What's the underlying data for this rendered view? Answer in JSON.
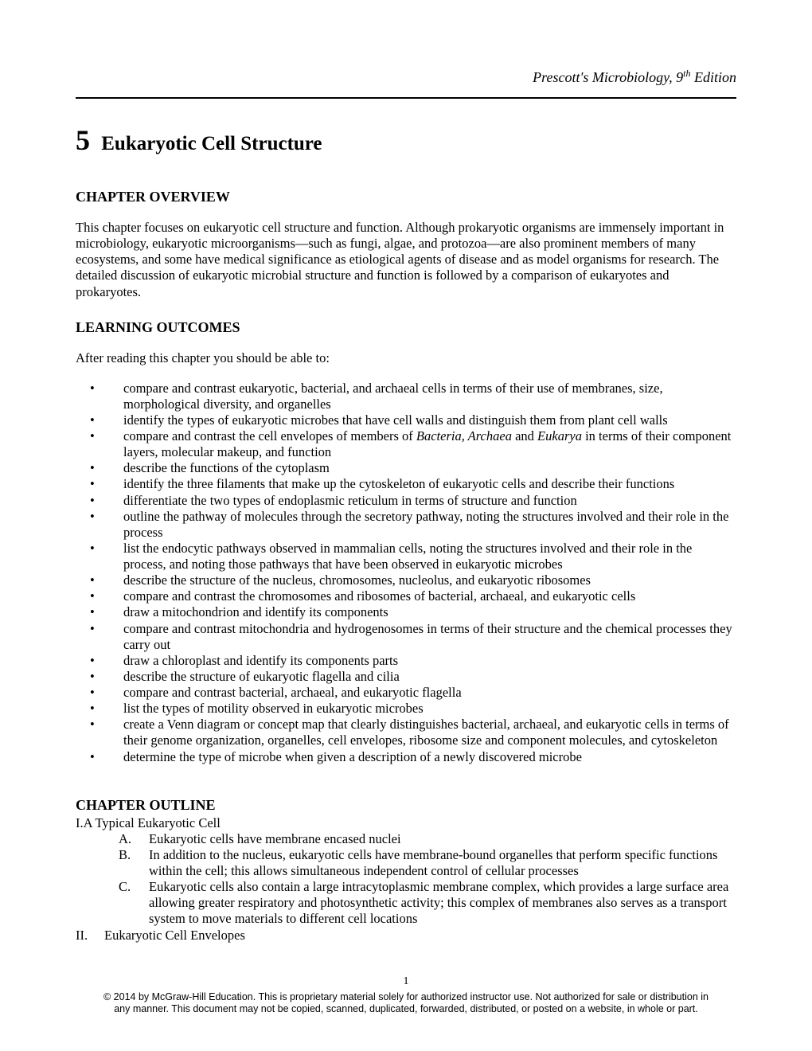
{
  "running_head": {
    "title_pre": "Prescott's Microbiology, 9",
    "title_sup": "th",
    "title_post": " Edition"
  },
  "chapter": {
    "number": "5",
    "title": "Eukaryotic Cell Structure"
  },
  "overview": {
    "heading": "CHAPTER OVERVIEW",
    "text": "This chapter focuses on eukaryotic cell structure and function. Although prokaryotic organisms are immensely important in microbiology, eukaryotic microorganisms—such as fungi, algae, and protozoa—are also prominent members of many ecosystems, and some have medical significance as etiological agents of disease and as model organisms for research.  The detailed discussion of eukaryotic microbial structure and function is followed by a comparison of eukaryotes and prokaryotes."
  },
  "learning_outcomes": {
    "heading": "LEARNING OUTCOMES",
    "intro": "After reading this chapter you should be able to:",
    "items": [
      "compare and contrast eukaryotic, bacterial, and archaeal cells in terms of their use of membranes, size, morphological diversity, and organelles",
      "identify the types of eukaryotic microbes that have cell walls and distinguish them from plant cell walls",
      "compare and contrast the cell envelopes of members of <em>Bacteria, Archaea</em> and <em>Eukarya</em> in terms of their component layers, molecular makeup, and function",
      "describe the functions of the cytoplasm",
      "identify the three filaments that make up the cytoskeleton of eukaryotic cells and describe their functions",
      "differentiate the two types of endoplasmic reticulum in terms of structure and function",
      "outline the pathway of molecules through the secretory pathway, noting the structures involved and their role in the process",
      "list the endocytic pathways observed in mammalian cells, noting the structures involved and their role in the process, and noting those pathways that have been observed in eukaryotic microbes",
      "describe the structure of the nucleus, chromosomes, nucleolus, and eukaryotic ribosomes",
      "compare and contrast the chromosomes and ribosomes of bacterial, archaeal, and eukaryotic cells",
      "draw a mitochondrion and identify its components",
      "compare and contrast mitochondria and hydrogenosomes in terms of their structure and the chemical processes they  carry out",
      "draw a chloroplast and identify its components parts",
      "describe the structure of eukaryotic flagella and cilia",
      "compare and contrast bacterial, archaeal, and eukaryotic flagella",
      "list the types of motility observed in eukaryotic microbes",
      "create a Venn diagram or concept map that clearly distinguishes bacterial, archaeal, and eukaryotic cells in terms of their genome organization, organelles, cell envelopes, ribosome size and component molecules, and cytoskeleton",
      "determine the type of microbe when given a description of a newly discovered microbe"
    ]
  },
  "outline": {
    "heading": "CHAPTER OUTLINE",
    "section1_label": "I.",
    "section1_title": "A Typical Eukaryotic Cell",
    "section1_items": [
      {
        "label": "A.",
        "text": "Eukaryotic cells have membrane encased nuclei"
      },
      {
        "label": "B.",
        "text": "In addition to the nucleus, eukaryotic cells have membrane-bound organelles that perform specific functions within the cell; this allows simultaneous independent control of cellular processes"
      },
      {
        "label": "C.",
        "text": "Eukaryotic cells also contain a large intracytoplasmic membrane complex, which provides a large surface area allowing greater respiratory and photosynthetic activity; this complex of membranes also serves as a transport system to move materials to different cell locations"
      }
    ],
    "section2_label": "II.",
    "section2_title": "Eukaryotic Cell Envelopes"
  },
  "footer": {
    "page_number": "1",
    "copyright": "© 2014 by McGraw-Hill Education. This is proprietary material solely for authorized instructor use. Not authorized for sale or distribution in any manner. This document may not be copied, scanned, duplicated, forwarded, distributed, or posted on a website, in whole or part."
  }
}
